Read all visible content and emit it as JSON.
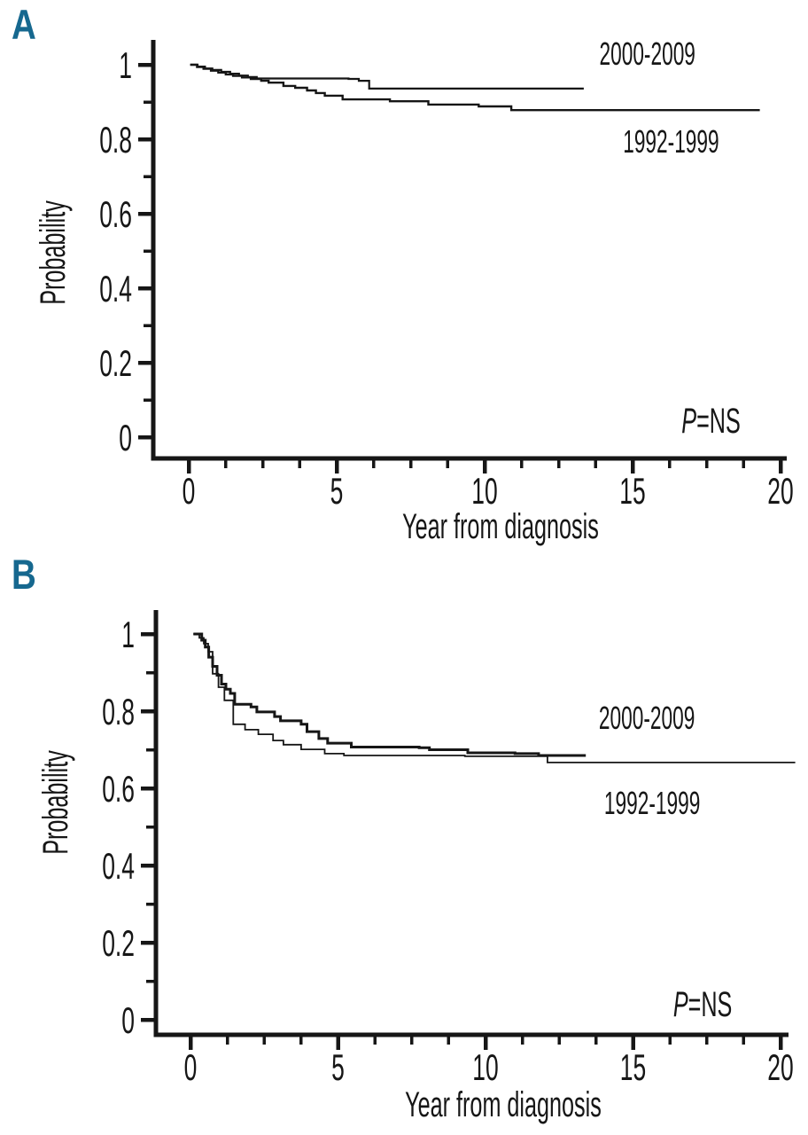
{
  "page": {
    "background": "#ffffff",
    "accent_color": "#16688f",
    "curve_color": "#161616"
  },
  "panels": [
    {
      "letter": "A"
    },
    {
      "letter": "B"
    }
  ],
  "chart_data": [
    {
      "type": "line",
      "subtype": "kaplan_meier_step",
      "panel": "A",
      "title": "",
      "xlabel": "Year from diagnosis",
      "ylabel": "Probability",
      "xlim": [
        0,
        20
      ],
      "ylim": [
        0,
        1.05
      ],
      "xticks": [
        0,
        5,
        10,
        15,
        20
      ],
      "xtick_labels": [
        "0",
        "5",
        "10",
        "15",
        "20"
      ],
      "yticks": [
        0,
        0.2,
        0.4,
        0.6,
        0.8,
        1
      ],
      "ytick_labels": [
        "0",
        "0.2",
        "0.4",
        "0.6",
        "0.8",
        "1"
      ],
      "minor_x_step": 1.25,
      "minor_y_step": 0.1,
      "grid": false,
      "annotation": {
        "italic": "P",
        "rest": "=NS",
        "x": 17.65,
        "y": 0.048
      },
      "series": [
        {
          "name": "2000-2009",
          "label_x": 15.5,
          "label_y": 1.028,
          "x": [
            0.05,
            0.3,
            0.55,
            0.8,
            1.1,
            1.4,
            1.7,
            2.0,
            2.3,
            5.4,
            5.75,
            6.1,
            13.35
          ],
          "y": [
            1.0,
            0.995,
            0.99,
            0.986,
            0.981,
            0.976,
            0.971,
            0.967,
            0.963,
            0.962,
            0.957,
            0.936,
            0.936
          ]
        },
        {
          "name": "1992-1999",
          "label_x": 16.3,
          "label_y": 0.793,
          "x": [
            0.05,
            0.28,
            0.5,
            0.75,
            1.0,
            1.25,
            1.5,
            1.8,
            2.1,
            2.45,
            2.7,
            3.2,
            3.6,
            4.0,
            4.3,
            4.6,
            5.2,
            6.8,
            8.1,
            9.8,
            10.9,
            19.3
          ],
          "y": [
            1.0,
            0.994,
            0.989,
            0.984,
            0.979,
            0.974,
            0.97,
            0.966,
            0.962,
            0.957,
            0.952,
            0.943,
            0.938,
            0.931,
            0.924,
            0.917,
            0.907,
            0.902,
            0.893,
            0.888,
            0.878,
            0.878
          ]
        }
      ]
    },
    {
      "type": "line",
      "subtype": "kaplan_meier_step",
      "panel": "B",
      "title": "",
      "xlabel": "Year from diagnosis",
      "ylabel": "Probability",
      "xlim": [
        0,
        20
      ],
      "ylim": [
        0,
        1.05
      ],
      "xticks": [
        0,
        5,
        10,
        15,
        20
      ],
      "xtick_labels": [
        "0",
        "5",
        "10",
        "15",
        "20"
      ],
      "yticks": [
        0,
        0.2,
        0.4,
        0.6,
        0.8,
        1
      ],
      "ytick_labels": [
        "0",
        "0.2",
        "0.4",
        "0.6",
        "0.8",
        "1"
      ],
      "minor_x_step": 1.25,
      "minor_y_step": 0.1,
      "grid": false,
      "annotation": {
        "italic": "P",
        "rest": "=NS",
        "x": 17.36,
        "y": 0.044
      },
      "series": [
        {
          "name": "2000-2009",
          "label_x": 15.47,
          "label_y": 0.782,
          "x": [
            0.1,
            0.38,
            0.5,
            0.62,
            0.75,
            0.9,
            1.05,
            1.2,
            1.35,
            1.5,
            2.05,
            2.25,
            2.85,
            3.05,
            3.75,
            3.95,
            4.35,
            4.65,
            5.45,
            7.75,
            8.1,
            9.4,
            11.0,
            11.8,
            13.4
          ],
          "y": [
            1.0,
            0.984,
            0.966,
            0.94,
            0.916,
            0.893,
            0.87,
            0.857,
            0.846,
            0.818,
            0.811,
            0.798,
            0.786,
            0.775,
            0.766,
            0.747,
            0.729,
            0.717,
            0.707,
            0.705,
            0.7,
            0.692,
            0.69,
            0.685,
            0.685
          ]
        },
        {
          "name": "1992-1999",
          "label_x": 15.65,
          "label_y": 0.561,
          "x": [
            0.1,
            0.3,
            0.45,
            0.6,
            0.75,
            0.95,
            1.15,
            1.45,
            1.85,
            2.3,
            2.8,
            3.15,
            3.75,
            4.55,
            5.2,
            9.3,
            12.1,
            20.5
          ],
          "y": [
            1.0,
            0.99,
            0.975,
            0.954,
            0.897,
            0.862,
            0.828,
            0.766,
            0.752,
            0.74,
            0.724,
            0.713,
            0.701,
            0.69,
            0.685,
            0.683,
            0.667,
            0.667
          ]
        }
      ]
    }
  ]
}
